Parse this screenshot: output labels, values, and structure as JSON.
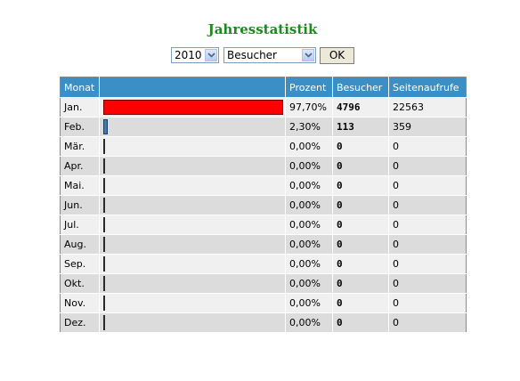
{
  "page": {
    "title": "Jahresstatistik"
  },
  "controls": {
    "year_value": "2010",
    "metric_value": "Besucher",
    "ok_label": "OK"
  },
  "table": {
    "headers": [
      "Monat",
      "",
      "Prozent",
      "Besucher",
      "Seitenaufrufe"
    ],
    "rows": [
      {
        "month": "Jan.",
        "percent": "97,70%",
        "share": 0.977,
        "besucher": "4796",
        "seitenaufrufe": "22563"
      },
      {
        "month": "Feb.",
        "percent": "2,30%",
        "share": 0.023,
        "besucher": "113",
        "seitenaufrufe": "359"
      },
      {
        "month": "Mär.",
        "percent": "0,00%",
        "share": 0,
        "besucher": "0",
        "seitenaufrufe": "0"
      },
      {
        "month": "Apr.",
        "percent": "0,00%",
        "share": 0,
        "besucher": "0",
        "seitenaufrufe": "0"
      },
      {
        "month": "Mai.",
        "percent": "0,00%",
        "share": 0,
        "besucher": "0",
        "seitenaufrufe": "0"
      },
      {
        "month": "Jun.",
        "percent": "0,00%",
        "share": 0,
        "besucher": "0",
        "seitenaufrufe": "0"
      },
      {
        "month": "Jul.",
        "percent": "0,00%",
        "share": 0,
        "besucher": "0",
        "seitenaufrufe": "0"
      },
      {
        "month": "Aug.",
        "percent": "0,00%",
        "share": 0,
        "besucher": "0",
        "seitenaufrufe": "0"
      },
      {
        "month": "Sep.",
        "percent": "0,00%",
        "share": 0,
        "besucher": "0",
        "seitenaufrufe": "0"
      },
      {
        "month": "Okt.",
        "percent": "0,00%",
        "share": 0,
        "besucher": "0",
        "seitenaufrufe": "0"
      },
      {
        "month": "Nov.",
        "percent": "0,00%",
        "share": 0,
        "besucher": "0",
        "seitenaufrufe": "0"
      },
      {
        "month": "Dez.",
        "percent": "0,00%",
        "share": 0,
        "besucher": "0",
        "seitenaufrufe": "0"
      }
    ]
  },
  "colors": {
    "title": "#1e8a1e",
    "header_bg": "#3a8fc6",
    "bar_main": "#ff0000",
    "bar_small": "#3a7db5"
  }
}
